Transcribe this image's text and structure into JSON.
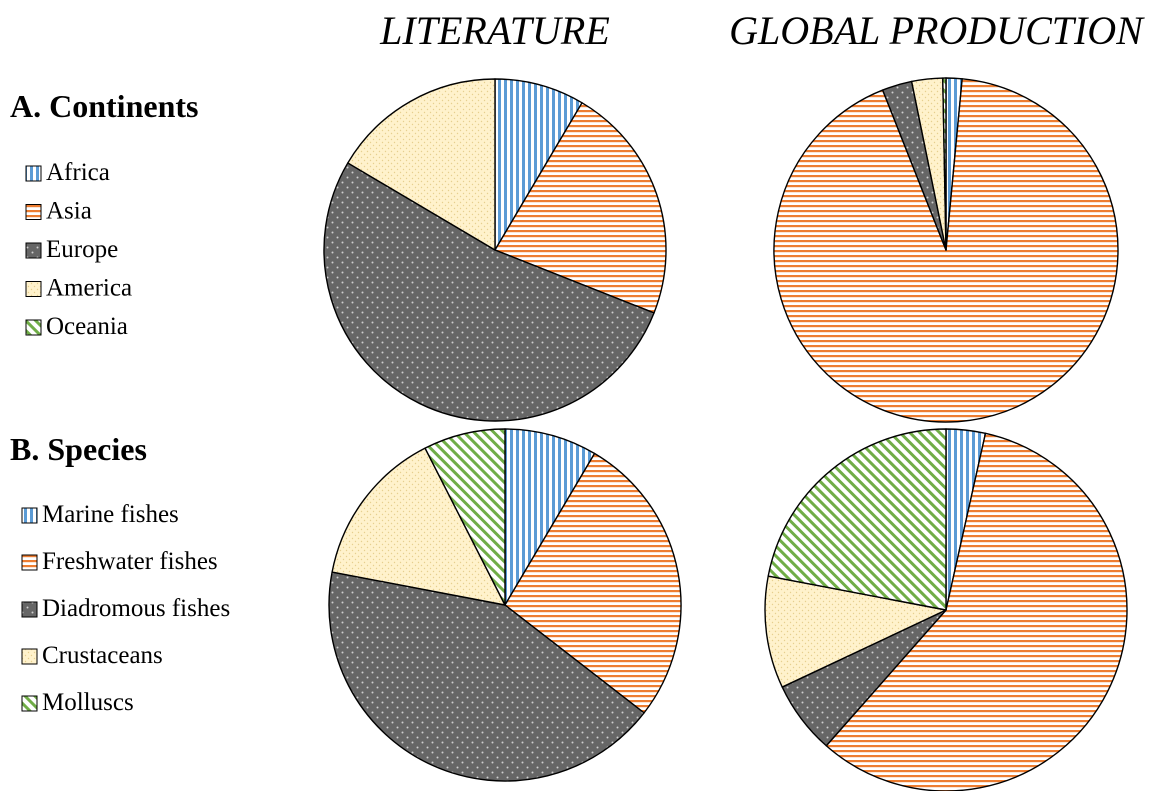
{
  "column_titles": {
    "literature": "LITERATURE",
    "global": "GLOBAL PRODUCTION"
  },
  "sections": {
    "continents": "A. Continents",
    "species": "B. Species"
  },
  "colors": {
    "blue": "#5b9bd5",
    "orange": "#ed7d31",
    "gray": "#666666",
    "cream": "#fff2cc",
    "green": "#70ad47"
  },
  "chart_data": [
    {
      "type": "pie",
      "row": "A. Continents",
      "column": "LITERATURE",
      "categories": [
        "Africa",
        "Asia",
        "Europe",
        "America",
        "Oceania"
      ],
      "values": [
        8.5,
        22.5,
        52.5,
        16.5,
        0
      ]
    },
    {
      "type": "pie",
      "row": "A. Continents",
      "column": "GLOBAL PRODUCTION",
      "categories": [
        "Africa",
        "Asia",
        "Europe",
        "America",
        "Oceania"
      ],
      "values": [
        1.5,
        92.5,
        2.8,
        2.9,
        0.3
      ]
    },
    {
      "type": "pie",
      "row": "B. Species",
      "column": "LITERATURE",
      "categories": [
        "Marine fishes",
        "Freshwater fishes",
        "Diadromous fishes",
        "Crustaceans",
        "Molluscs"
      ],
      "values": [
        8.5,
        27,
        42.5,
        14.5,
        7.5
      ]
    },
    {
      "type": "pie",
      "row": "B. Species",
      "column": "GLOBAL PRODUCTION",
      "categories": [
        "Marine fishes",
        "Freshwater fishes",
        "Diadromous fishes",
        "Crustaceans",
        "Molluscs"
      ],
      "values": [
        3.5,
        58,
        6.5,
        10,
        22
      ]
    }
  ]
}
